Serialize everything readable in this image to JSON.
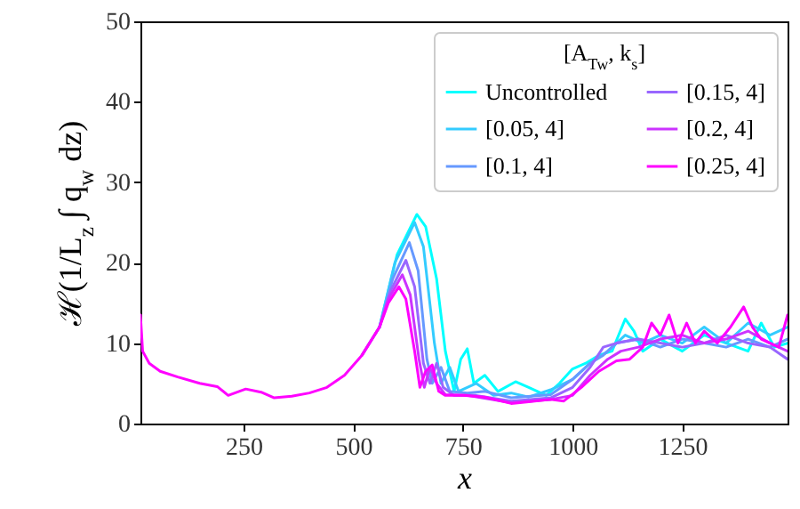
{
  "chart_data": {
    "type": "line",
    "xlabel": "x",
    "ylabel": "ℋ(1/L$_{z}$ ∫ q$_{w}$ dz)",
    "legend_title": "[A$_{Tw}$, k$_{s}$]",
    "xlim": [
      15,
      1490
    ],
    "xticks": [
      250,
      500,
      750,
      1000,
      1250
    ],
    "ylim": [
      0,
      50
    ],
    "yticks": [
      0,
      10,
      20,
      30,
      40,
      50
    ],
    "grid": false,
    "legend": "top right",
    "line_style": "solid",
    "marker": "none",
    "series": [
      {
        "name": "Uncontrolled",
        "color": "#00ffff",
        "x": [
          560,
          600,
          645,
          665,
          690,
          710,
          730,
          745,
          760,
          775,
          800,
          830,
          870,
          900,
          940,
          970,
          1000,
          1030,
          1060,
          1090,
          1120,
          1140,
          1160,
          1200,
          1250,
          1300,
          1350,
          1400,
          1430,
          1460,
          1490
        ],
        "values": [
          12,
          21,
          26,
          24.5,
          18,
          9,
          4,
          8,
          9.3,
          5,
          6,
          4,
          5.2,
          4.5,
          3.5,
          5,
          6.8,
          7.5,
          8.5,
          9,
          13,
          11.5,
          9,
          10.5,
          9,
          11,
          10,
          9,
          12.5,
          9.5,
          10
        ]
      },
      {
        "name": "[0.05, 4]",
        "color": "#33ccff",
        "x": [
          560,
          595,
          640,
          660,
          685,
          700,
          720,
          740,
          780,
          820,
          860,
          900,
          950,
          1000,
          1040,
          1080,
          1120,
          1160,
          1200,
          1250,
          1300,
          1350,
          1400,
          1450,
          1490
        ],
        "values": [
          12,
          20,
          25,
          22,
          10,
          5,
          7,
          4,
          5,
          3.5,
          3.8,
          3.3,
          4.2,
          5.5,
          7.5,
          9,
          11,
          10,
          11,
          10,
          12,
          10,
          12.5,
          11,
          12
        ]
      },
      {
        "name": "[0.1, 4]",
        "color": "#6699ff",
        "x": [
          560,
          590,
          628,
          648,
          668,
          680,
          700,
          720,
          760,
          800,
          860,
          950,
          1000,
          1040,
          1070,
          1100,
          1150,
          1200,
          1250,
          1300,
          1350,
          1400,
          1450,
          1490
        ],
        "values": [
          12,
          18,
          22.5,
          19,
          8,
          5,
          7,
          4,
          3.8,
          4,
          3.2,
          3.6,
          5.5,
          7.5,
          8.5,
          10,
          10.5,
          9.5,
          10.5,
          10,
          9.5,
          10.5,
          9.5,
          10.5
        ]
      },
      {
        "name": "[0.15, 4]",
        "color": "#9966ff",
        "x": [
          520,
          560,
          585,
          620,
          640,
          660,
          675,
          690,
          705,
          730,
          780,
          860,
          950,
          1000,
          1040,
          1070,
          1100,
          1150,
          1200,
          1250,
          1300,
          1350,
          1400,
          1450,
          1490
        ],
        "values": [
          8.5,
          12,
          16.5,
          20.3,
          17,
          7.5,
          5,
          7.5,
          4.5,
          3.5,
          3.5,
          2.8,
          3.2,
          4.5,
          7,
          9.5,
          10,
          10.5,
          10,
          9.5,
          10,
          11,
          10,
          9.5,
          8
        ]
      },
      {
        "name": "[0.2, 4]",
        "color": "#cc33ff",
        "x": [
          520,
          560,
          580,
          612,
          630,
          650,
          662,
          675,
          690,
          710,
          760,
          860,
          950,
          1000,
          1040,
          1080,
          1110,
          1150,
          1200,
          1250,
          1300,
          1350,
          1400,
          1450,
          1490
        ],
        "values": [
          8.5,
          12,
          15.5,
          18.5,
          16,
          8,
          4.5,
          7,
          5,
          3.6,
          3.5,
          2.6,
          3,
          3.5,
          6,
          8,
          9,
          9.5,
          10.5,
          11,
          10,
          10.5,
          11.5,
          10,
          9
        ]
      },
      {
        "name": "[0.25, 4]",
        "color": "#ff00ff",
        "x": [
          15,
          20,
          35,
          60,
          100,
          150,
          190,
          215,
          255,
          290,
          320,
          360,
          400,
          440,
          480,
          520,
          560,
          580,
          604,
          620,
          640,
          652,
          665,
          680,
          695,
          710,
          750,
          800,
          860,
          900,
          950,
          980,
          1020,
          1060,
          1100,
          1130,
          1160,
          1180,
          1200,
          1220,
          1240,
          1260,
          1280,
          1300,
          1330,
          1360,
          1390,
          1410,
          1430,
          1450,
          1470,
          1490
        ],
        "values": [
          13.5,
          9,
          7.5,
          6.5,
          5.8,
          5,
          4.6,
          3.5,
          4.3,
          3.9,
          3.2,
          3.4,
          3.8,
          4.5,
          6,
          8.5,
          12,
          15,
          17,
          15.5,
          9,
          4.5,
          6.5,
          7.3,
          4,
          3.5,
          3.5,
          3.3,
          2.5,
          2.7,
          3,
          2.8,
          4.5,
          6.5,
          7.8,
          8,
          9.5,
          12.5,
          11,
          13.5,
          10,
          12.5,
          10,
          11.5,
          10,
          12,
          14.5,
          12,
          10.5,
          10,
          9.5,
          13.5
        ]
      }
    ]
  }
}
